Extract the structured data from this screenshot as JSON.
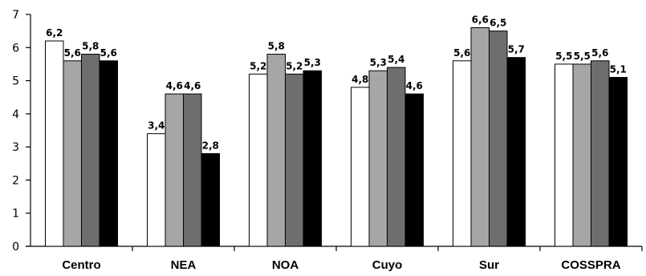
{
  "chart_data": {
    "type": "bar",
    "categories": [
      "Centro",
      "NEA",
      "NOA",
      "Cuyo",
      "Sur",
      "COSSPRA"
    ],
    "series": [
      {
        "values": [
          6.2,
          3.4,
          5.2,
          4.8,
          5.6,
          5.5
        ]
      },
      {
        "values": [
          5.6,
          4.6,
          5.8,
          5.3,
          6.6,
          5.5
        ]
      },
      {
        "values": [
          5.8,
          4.6,
          5.2,
          5.4,
          6.5,
          5.6
        ]
      },
      {
        "values": [
          5.6,
          2.8,
          5.3,
          4.6,
          5.7,
          5.1
        ]
      }
    ],
    "data_labels": [
      [
        "6,2",
        "3,4",
        "5,2",
        "4,8",
        "5,6",
        "5,5"
      ],
      [
        "5,6",
        "4,6",
        "5,8",
        "5,3",
        "6,6",
        "5,5"
      ],
      [
        "5,8",
        "4,6",
        "5,2",
        "5,4",
        "6,5",
        "5,6"
      ],
      [
        "5,6",
        "2,8",
        "5,3",
        "4,6",
        "5,7",
        "5,1"
      ]
    ],
    "series_colors": [
      "#ffffff",
      "#a6a6a6",
      "#6e6e70",
      "#000000"
    ],
    "yticks": [
      "0",
      "1",
      "2",
      "3",
      "4",
      "5",
      "6",
      "7"
    ],
    "ylim": [
      0,
      7
    ],
    "grid": false,
    "legend": "none"
  }
}
